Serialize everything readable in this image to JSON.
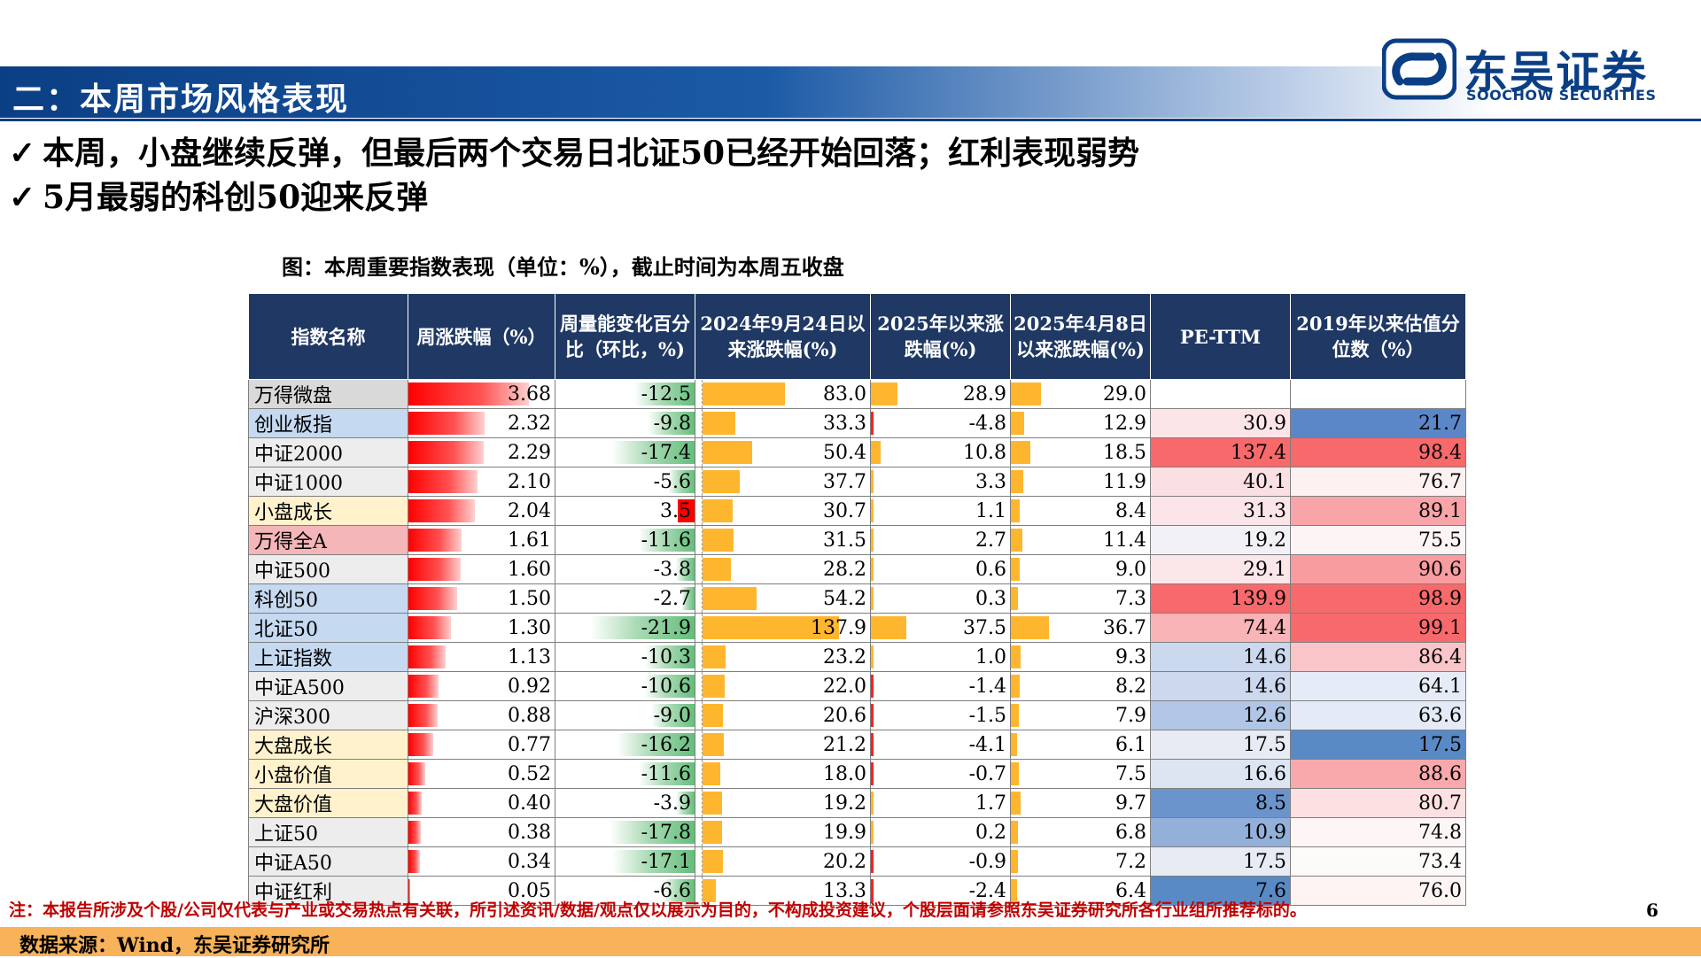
{
  "header": {
    "title": "二：本周市场风格表现",
    "logo_cn": "东吴证券",
    "logo_en": "SOOCHOW SECURITIES"
  },
  "bullets": [
    "本周，小盘继续反弹，但最后两个交易日北证50已经开始回落；红利表现弱势",
    "5月最弱的科创50迎来反弹"
  ],
  "check_glyph": "✓",
  "caption": "图：本周重要指数表现（单位：%），截止时间为本周五收盘",
  "table": {
    "headers": [
      "指数名称",
      "周涨跌幅（%）",
      "周量能变化百分比（环比，%)",
      "2024年9月24日以来涨跌幅(%)",
      "2025年以来涨跌幅(%)",
      "2025年4月8日以来涨跌幅(%)",
      "PE-TTM",
      "2019年以来估值分位数（%）"
    ],
    "rows": [
      {
        "name": "万得微盘",
        "name_bg": "#d9d9d9",
        "weekly": "3.68",
        "volume": "-12.5",
        "since0924": "83.0",
        "ytd": "28.9",
        "since0408": "29.0",
        "pe": "",
        "pe_bg": "#ffffff",
        "pct": "",
        "pct_bg": "#ffffff"
      },
      {
        "name": "创业板指",
        "name_bg": "#c5d9f1",
        "weekly": "2.32",
        "volume": "-9.8",
        "since0924": "33.3",
        "ytd": "-4.8",
        "since0408": "12.9",
        "pe": "30.9",
        "pe_bg": "#fbe5e8",
        "pct": "21.7",
        "pct_bg": "#5b87c9"
      },
      {
        "name": "中证2000",
        "name_bg": "#ededed",
        "weekly": "2.29",
        "volume": "-17.4",
        "since0924": "50.4",
        "ytd": "10.8",
        "since0408": "18.5",
        "pe": "137.4",
        "pe_bg": "#f8696b",
        "pct": "98.4",
        "pct_bg": "#f8696b"
      },
      {
        "name": "中证1000",
        "name_bg": "#ededed",
        "weekly": "2.10",
        "volume": "-5.6",
        "since0924": "37.7",
        "ytd": "3.3",
        "since0408": "11.9",
        "pe": "40.1",
        "pe_bg": "#fbe0e3",
        "pct": "76.7",
        "pct_bg": "#fdf1f2"
      },
      {
        "name": "小盘成长",
        "name_bg": "#fff2cc",
        "weekly": "2.04",
        "volume": "3.5",
        "since0924": "30.7",
        "ytd": "1.1",
        "since0408": "8.4",
        "pe": "31.3",
        "pe_bg": "#fbe5e8",
        "pct": "89.1",
        "pct_bg": "#f9a4a8"
      },
      {
        "name": "万得全A",
        "name_bg": "#f4b6b8",
        "weekly": "1.61",
        "volume": "-11.6",
        "since0924": "31.5",
        "ytd": "2.7",
        "since0408": "11.4",
        "pe": "19.2",
        "pe_bg": "#f1f1f6",
        "pct": "75.5",
        "pct_bg": "#fdf4f5"
      },
      {
        "name": "中证500",
        "name_bg": "#ededed",
        "weekly": "1.60",
        "volume": "-3.8",
        "since0924": "28.2",
        "ytd": "0.6",
        "since0408": "9.0",
        "pe": "29.1",
        "pe_bg": "#fbe7ea",
        "pct": "90.6",
        "pct_bg": "#f99ca0"
      },
      {
        "name": "科创50",
        "name_bg": "#c5d9f1",
        "weekly": "1.50",
        "volume": "-2.7",
        "since0924": "54.2",
        "ytd": "0.3",
        "since0408": "7.3",
        "pe": "139.9",
        "pe_bg": "#f8696b",
        "pct": "98.9",
        "pct_bg": "#f8696b"
      },
      {
        "name": "北证50",
        "name_bg": "#c5d9f1",
        "weekly": "1.30",
        "volume": "-21.9",
        "since0924": "137.9",
        "ytd": "37.5",
        "since0408": "36.7",
        "pe": "74.4",
        "pe_bg": "#f9b4b8",
        "pct": "99.1",
        "pct_bg": "#f8696b"
      },
      {
        "name": "上证指数",
        "name_bg": "#c5d9f1",
        "weekly": "1.13",
        "volume": "-10.3",
        "since0924": "23.2",
        "ytd": "1.0",
        "since0408": "9.3",
        "pe": "14.6",
        "pe_bg": "#cbd8ee",
        "pct": "86.4",
        "pct_bg": "#fac5c8"
      },
      {
        "name": "中证A500",
        "name_bg": "#ededed",
        "weekly": "0.92",
        "volume": "-10.6",
        "since0924": "22.0",
        "ytd": "-1.4",
        "since0408": "8.2",
        "pe": "14.6",
        "pe_bg": "#cbd8ee",
        "pct": "64.1",
        "pct_bg": "#e6ecf7"
      },
      {
        "name": "沪深300",
        "name_bg": "#ededed",
        "weekly": "0.88",
        "volume": "-9.0",
        "since0924": "20.6",
        "ytd": "-1.5",
        "since0408": "7.9",
        "pe": "12.6",
        "pe_bg": "#b1c6e6",
        "pct": "63.6",
        "pct_bg": "#e4ebf6"
      },
      {
        "name": "大盘成长",
        "name_bg": "#fff2cc",
        "weekly": "0.77",
        "volume": "-16.2",
        "since0924": "21.2",
        "ytd": "-4.1",
        "since0408": "6.1",
        "pe": "17.5",
        "pe_bg": "#e6ebf4",
        "pct": "17.5",
        "pct_bg": "#5a8ac6"
      },
      {
        "name": "小盘价值",
        "name_bg": "#fff2cc",
        "weekly": "0.52",
        "volume": "-11.6",
        "since0924": "18.0",
        "ytd": "-0.7",
        "since0408": "7.5",
        "pe": "16.6",
        "pe_bg": "#dde5f2",
        "pct": "88.6",
        "pct_bg": "#f9a9ac"
      },
      {
        "name": "大盘价值",
        "name_bg": "#fff2cc",
        "weekly": "0.40",
        "volume": "-3.9",
        "since0924": "19.2",
        "ytd": "1.7",
        "since0408": "9.7",
        "pe": "8.5",
        "pe_bg": "#6b94cd",
        "pct": "80.7",
        "pct_bg": "#fce0e2"
      },
      {
        "name": "上证50",
        "name_bg": "#ededed",
        "weekly": "0.38",
        "volume": "-17.8",
        "since0924": "19.9",
        "ytd": "0.2",
        "since0408": "6.8",
        "pe": "10.9",
        "pe_bg": "#93b0da",
        "pct": "74.8",
        "pct_bg": "#fef6f6"
      },
      {
        "name": "中证A50",
        "name_bg": "#ededed",
        "weekly": "0.34",
        "volume": "-17.1",
        "since0924": "20.2",
        "ytd": "-0.9",
        "since0408": "7.2",
        "pe": "17.5",
        "pe_bg": "#e6ebf4",
        "pct": "73.4",
        "pct_bg": "#fdfafa"
      },
      {
        "name": "中证红利",
        "name_bg": "#ededed",
        "weekly": "0.05",
        "volume": "-6.6",
        "since0924": "13.3",
        "ytd": "-2.4",
        "since0408": "6.4",
        "pe": "7.6",
        "pe_bg": "#5a8ac6",
        "pct": "76.0",
        "pct_bg": "#fef4f4"
      }
    ]
  },
  "footer": {
    "note": "注：本报告所涉及个股/公司仅代表与产业或交易热点有关联，所引述资讯/数据/观点仅以展示为目的，不构成投资建议，个股层面请参照东吴证券研究所各行业组所推荐标的。",
    "page": "6",
    "source": "数据来源：Wind，东吴证券研究所"
  },
  "colors": {
    "brand": "#0b3f85",
    "header_fill": "#1f3864",
    "bar_red": "#ff0000",
    "bar_green": "#63be7b",
    "bar_orange": "#ffb62f",
    "footer_band": "#f7b25a",
    "note_red": "#c00000"
  }
}
